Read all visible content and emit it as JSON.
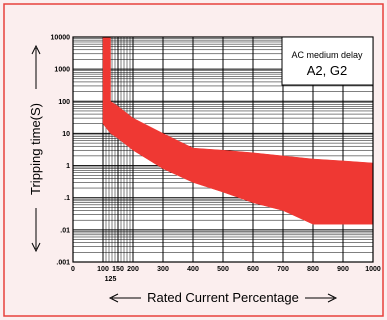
{
  "colors": {
    "background": "#fbeeee",
    "frame_border": "#e8403b",
    "band": "#ef3833",
    "grid": "#000000"
  },
  "chart_data": {
    "type": "area",
    "legend": {
      "line1": "AC medium delay",
      "line2": "A2, G2",
      "placement": "top-right"
    },
    "xlabel": "Rated Current Percentage",
    "ylabel": "Tripping time(S)",
    "x_scale": "linear",
    "y_scale": "log",
    "xlim": [
      0,
      1000
    ],
    "ylim": [
      0.001,
      10000
    ],
    "x_ticks": [
      "0",
      "100",
      "150",
      "200",
      "300",
      "400",
      "500",
      "600",
      "700",
      "800",
      "900",
      "1000"
    ],
    "x_tick_values": [
      0,
      100,
      150,
      200,
      300,
      400,
      500,
      600,
      700,
      800,
      900,
      1000
    ],
    "extra_x_tick": "125",
    "extra_x_tick_value": 125,
    "y_ticks": [
      "10000",
      "1000",
      "100",
      "10",
      "1",
      ".1",
      ".01",
      ".001"
    ],
    "y_tick_values": [
      10000,
      1000,
      100,
      10,
      1,
      0.1,
      0.01,
      0.001
    ],
    "grid": true,
    "series": [
      {
        "upper": {
          "x": [
            100,
            125,
            125,
            150,
            200,
            300,
            400,
            500,
            600,
            700,
            800,
            900,
            1000
          ],
          "y": [
            10000,
            10000,
            100,
            70,
            30,
            10,
            3.5,
            3,
            2.5,
            2,
            1.6,
            1.4,
            1.2
          ]
        },
        "lower": {
          "x": [
            100,
            125,
            150,
            200,
            300,
            400,
            500,
            600,
            700,
            800,
            900,
            1000
          ],
          "y": [
            20,
            10,
            7,
            3,
            0.8,
            0.3,
            0.15,
            0.07,
            0.04,
            0.015,
            0.015,
            0.015
          ]
        }
      }
    ]
  }
}
